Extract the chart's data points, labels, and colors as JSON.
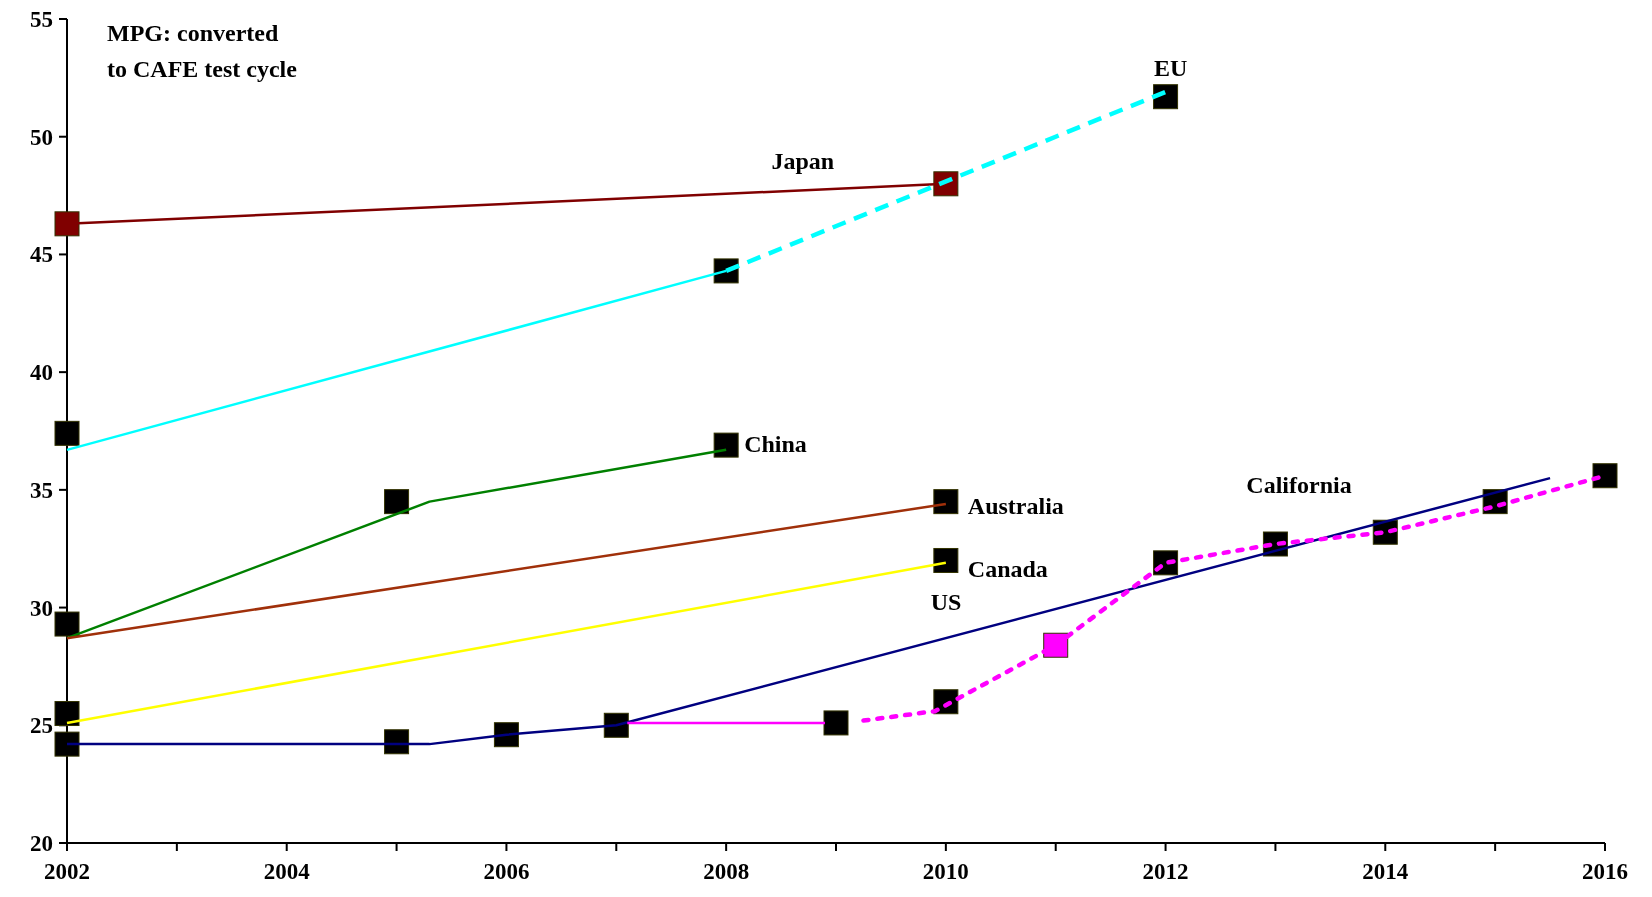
{
  "chart_data": {
    "type": "line",
    "xlim": [
      2002,
      2016
    ],
    "ylim": [
      20,
      55
    ],
    "xticks": [
      2002,
      {
        "value": 2003,
        "label": null
      },
      2004,
      {
        "value": 2005,
        "label": null
      },
      2006,
      {
        "value": 2007,
        "label": null
      },
      2008,
      {
        "value": 2009,
        "label": null
      },
      2010,
      {
        "value": 2011,
        "label": null
      },
      2012,
      {
        "value": 2013,
        "label": null
      },
      2014,
      {
        "value": 2015,
        "label": null
      },
      2016
    ],
    "yticks": [
      20,
      25,
      30,
      35,
      40,
      45,
      50,
      55
    ],
    "series": [
      {
        "name": "Japan",
        "color": "#800000",
        "x": [
          2002,
          2010
        ],
        "values": [
          46.3,
          48.0
        ]
      },
      {
        "color": "#00ffff",
        "x": [
          2002,
          2008
        ],
        "values": [
          36.7,
          44.3
        ]
      },
      {
        "name": "EU",
        "color": "#00ffff",
        "line_style": "dashed",
        "x": [
          2008,
          2012
        ],
        "values": [
          44.3,
          51.9
        ]
      },
      {
        "name": "China",
        "color": "#008000",
        "x": [
          2002,
          2005.3,
          2008
        ],
        "values": [
          28.7,
          34.5,
          36.7
        ]
      },
      {
        "name": "Australia",
        "color": "#a0300a",
        "x": [
          2002,
          2010
        ],
        "values": [
          28.7,
          34.4
        ]
      },
      {
        "name": "Canada",
        "color": "#ffff00",
        "x": [
          2002,
          2010
        ],
        "values": [
          25.1,
          31.9
        ]
      },
      {
        "name": "US",
        "color": "#000080",
        "x": [
          2002,
          2005.3,
          2006,
          2007,
          2015.5
        ],
        "values": [
          24.2,
          24.2,
          24.6,
          25.0,
          35.5
        ]
      },
      {
        "color": "#ff00ff",
        "x": [
          2007.1,
          2008.9
        ],
        "values": [
          25.1,
          25.1
        ]
      },
      {
        "name": "California",
        "color": "#ff00ff",
        "line_style": "dotted",
        "x": [
          2009.25,
          2009.9,
          2011,
          2012,
          2013,
          2014,
          2015,
          2016
        ],
        "values": [
          25.2,
          25.6,
          28.4,
          31.9,
          32.7,
          33.2,
          34.3,
          35.6
        ]
      },
      {
        "type": "scatter",
        "marker": "square",
        "color": "#000000",
        "x": [
          2002,
          2008,
          2012,
          2002,
          2005,
          2008,
          2010,
          2002,
          2010,
          2002,
          2005,
          2006,
          2007,
          2009,
          2010,
          2012,
          2013,
          2014,
          2015,
          2016
        ],
        "values": [
          37.4,
          44.3,
          51.7,
          29.3,
          34.5,
          36.9,
          34.5,
          25.5,
          32.0,
          24.2,
          24.3,
          24.6,
          25.0,
          25.1,
          26.0,
          31.9,
          32.7,
          33.2,
          34.5,
          35.6
        ]
      },
      {
        "type": "scatter",
        "marker": "square",
        "color": "#800000",
        "x": [
          2002,
          2010
        ],
        "values": [
          46.3,
          48.0
        ]
      },
      {
        "type": "scatter",
        "marker": "square",
        "color": "#ff00ff",
        "x": [
          2011
        ],
        "values": [
          28.4
        ]
      }
    ],
    "annotations": [
      "MPG: converted\nto CAFE test cycle"
    ]
  }
}
